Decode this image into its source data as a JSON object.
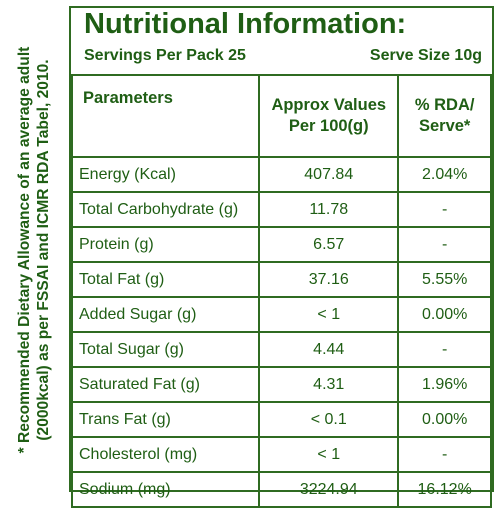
{
  "side_note": {
    "line1": "* Recommended Dietary Allowance of an average adult",
    "line2": "(2000kcal) as per FSSAI and ICMR RDA Tabel, 2010."
  },
  "header": {
    "title": "Nutritional Information:",
    "servings": "Servings Per Pack 25",
    "serve_size": "Serve Size 10g"
  },
  "table": {
    "headers": {
      "parameters": "Parameters",
      "values_line1": "Approx Values",
      "values_line2": "Per 100(g)",
      "rda_line1": "% RDA/",
      "rda_line2": "Serve*"
    },
    "rows": [
      {
        "param": "Energy (Kcal)",
        "value": "407.84",
        "rda": "2.04%"
      },
      {
        "param": "Total Carbohydrate (g)",
        "value": "11.78",
        "rda": "-"
      },
      {
        "param": "Protein (g)",
        "value": "6.57",
        "rda": "-"
      },
      {
        "param": "Total Fat (g)",
        "value": "37.16",
        "rda": "5.55%"
      },
      {
        "param": "Added Sugar (g)",
        "value": "< 1",
        "rda": "0.00%"
      },
      {
        "param": "Total Sugar (g)",
        "value": "4.44",
        "rda": "-"
      },
      {
        "param": "Saturated Fat (g)",
        "value": "4.31",
        "rda": "1.96%"
      },
      {
        "param": "Trans Fat (g)",
        "value": "< 0.1",
        "rda": "0.00%"
      },
      {
        "param": "Cholesterol (mg)",
        "value": "< 1",
        "rda": "-"
      },
      {
        "param": "Sodium (mg)",
        "value": "3224.94",
        "rda": "16.12%"
      }
    ]
  }
}
